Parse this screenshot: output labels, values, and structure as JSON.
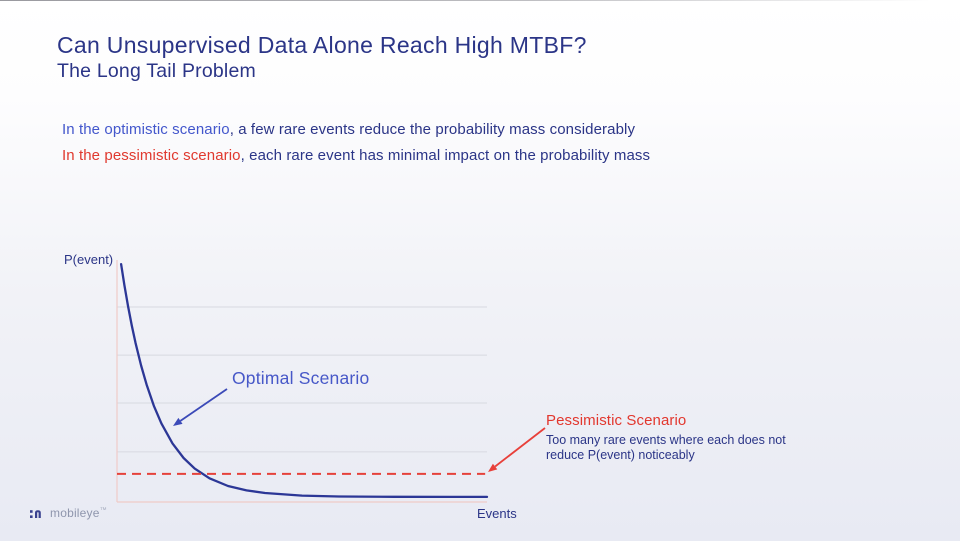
{
  "slide": {
    "title": "Can Unsupervised Data Alone Reach High MTBF?",
    "subtitle": "The Long Tail Problem",
    "bullets": [
      {
        "highlight": "In the optimistic scenario",
        "highlight_color": "#4357cc",
        "rest": ", a few rare events reduce the probability mass considerably"
      },
      {
        "highlight": "In the pessimistic scenario",
        "highlight_color": "#e0392f",
        "rest": ", each rare event has minimal impact on the probability mass"
      }
    ]
  },
  "chart_data": {
    "type": "line",
    "title": "",
    "xlabel": "Events",
    "ylabel": "P(event)",
    "x_range_normalized": [
      0,
      1
    ],
    "y_range_normalized": [
      0,
      1
    ],
    "grid": "horizontal gridlines only, no tick labels (conceptual chart)",
    "gridlines_y_normalized": [
      0.207,
      0.409,
      0.607,
      0.806
    ],
    "axis_color": "#f0cbc8",
    "gridline_color": "#d7d9e0",
    "series": [
      {
        "name": "Optimal Scenario",
        "style": "solid",
        "color": "#2c3796",
        "x": [
          0.011,
          0.02,
          0.03,
          0.04,
          0.05,
          0.065,
          0.08,
          0.1,
          0.12,
          0.15,
          0.18,
          0.21,
          0.25,
          0.3,
          0.35,
          0.4,
          0.5,
          0.6,
          0.75,
          0.9,
          1.0
        ],
        "y": [
          0.983,
          0.896,
          0.808,
          0.729,
          0.658,
          0.564,
          0.485,
          0.396,
          0.325,
          0.242,
          0.182,
          0.138,
          0.098,
          0.066,
          0.048,
          0.037,
          0.0265,
          0.0229,
          0.0214,
          0.0211,
          0.021
        ]
      },
      {
        "name": "Pessimistic Scenario",
        "style": "dashed",
        "color": "#e5423b",
        "constant_y": 0.116,
        "x_end": 0.995
      }
    ],
    "annotations": [
      {
        "text": "Optimal Scenario",
        "color": "#4758c8",
        "arrow_color": "#3b4ab8"
      },
      {
        "text": "Pessimistic Scenario",
        "color": "#e2372e",
        "arrow_color": "#e8403a",
        "caption_lines": [
          "Too many rare events where each does not",
          "reduce P(event) noticeably"
        ]
      }
    ],
    "legend": "inline annotations with arrows"
  },
  "footer": {
    "brand": "mobileye",
    "trademark": "™",
    "brand_icon_color": "#39418f",
    "brand_text_color": "#8f96ad"
  }
}
